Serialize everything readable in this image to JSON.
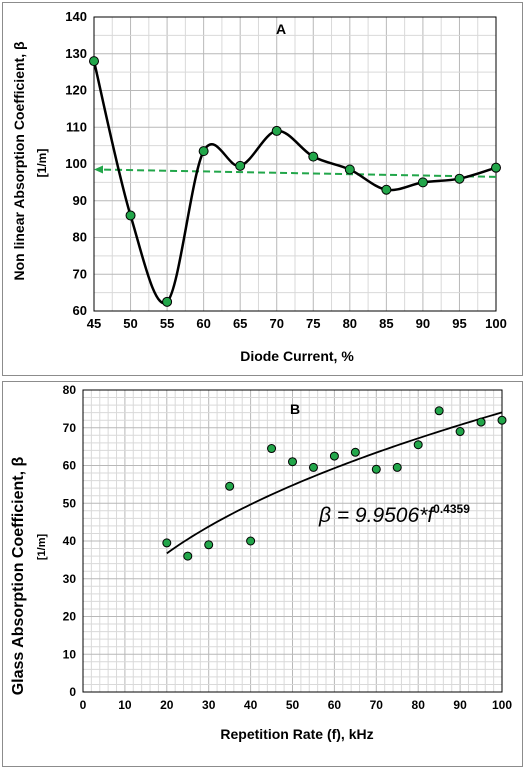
{
  "chart_data": [
    {
      "type": "line",
      "panel_label": "A",
      "xlabel": "Diode Current, %",
      "ylabel_line1": "Non linear Absorption Coefficient, β",
      "ylabel_line2": "[1/m]",
      "xlim": [
        45,
        100
      ],
      "ylim": [
        60,
        140
      ],
      "x_ticks": [
        45,
        50,
        55,
        60,
        65,
        70,
        75,
        80,
        85,
        90,
        95,
        100
      ],
      "y_ticks": [
        60,
        70,
        80,
        90,
        100,
        110,
        120,
        130,
        140
      ],
      "grid": true,
      "series": [
        {
          "x": [
            45,
            50,
            55,
            60,
            65,
            70,
            75,
            80,
            85,
            90,
            95,
            100
          ],
          "y": [
            128,
            86,
            62.5,
            103.5,
            99.5,
            109,
            102,
            98.5,
            93,
            95,
            96,
            99
          ]
        }
      ],
      "trend_line": {
        "style": "dashed",
        "x": [
          45,
          100
        ],
        "y": [
          98.5,
          96.5
        ]
      },
      "colors": {
        "marker": "#22a64a",
        "line": "#000000",
        "trend": "#22a64a",
        "grid": "#c8c8c8"
      }
    },
    {
      "type": "scatter",
      "panel_label": "B",
      "xlabel": "Repetition Rate (f), kHz",
      "ylabel_line1": "Glass Absorption Coefficient, β",
      "ylabel_line2": "[1/m]",
      "xlim": [
        0,
        100
      ],
      "ylim": [
        0,
        80
      ],
      "x_ticks": [
        0,
        10,
        20,
        30,
        40,
        50,
        60,
        70,
        80,
        90,
        100
      ],
      "y_ticks": [
        0,
        10,
        20,
        30,
        40,
        50,
        60,
        70,
        80
      ],
      "grid": true,
      "series": [
        {
          "x": [
            20,
            25,
            30,
            35,
            40,
            45,
            50,
            55,
            60,
            65,
            70,
            75,
            80,
            85,
            90,
            95,
            100
          ],
          "y": [
            39.5,
            36,
            39,
            54.5,
            40,
            64.5,
            61,
            59.5,
            62.5,
            63.5,
            59,
            59.5,
            65.5,
            74.5,
            69,
            71.5,
            72
          ]
        }
      ],
      "fit": {
        "equation_main": "β = 9.9506*f",
        "equation_exponent": "0.4359",
        "coefficient": 9.9506,
        "exponent": 0.4359,
        "x_range": [
          20,
          100
        ]
      },
      "colors": {
        "marker": "#22a64a",
        "line": "#000000",
        "grid": "#c8c8c8"
      }
    }
  ]
}
